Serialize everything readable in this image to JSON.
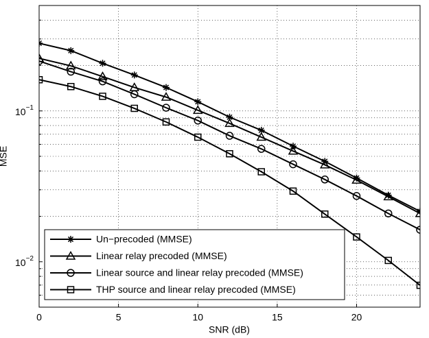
{
  "chart_data": {
    "type": "line",
    "xlabel": "SNR (dB)",
    "ylabel": "MSE",
    "yscale": "log",
    "grid": true,
    "legend": "southwest",
    "xlim": [
      0,
      24
    ],
    "xticks": [
      0,
      5,
      10,
      15,
      20
    ],
    "ylim": [
      0.005,
      0.5
    ],
    "yticks": [
      {
        "value": 0.01,
        "label": "10^−2"
      },
      {
        "value": 0.1,
        "label": "10^−1"
      }
    ],
    "yminorticks": [
      0.006,
      0.007,
      0.008,
      0.009,
      0.02,
      0.03,
      0.04,
      0.05,
      0.06,
      0.07,
      0.08,
      0.09,
      0.2,
      0.3,
      0.4,
      0.5
    ],
    "x": [
      0,
      2,
      4,
      6,
      8,
      10,
      12,
      14,
      16,
      18,
      20,
      22,
      24
    ],
    "series": [
      {
        "name": "Un−precoded (MMSE)",
        "color": "#000000",
        "marker": "star",
        "values": [
          0.281,
          0.251,
          0.207,
          0.173,
          0.143,
          0.115,
          0.0909,
          0.0744,
          0.0584,
          0.0463,
          0.0359,
          0.0276,
          0.0216
        ]
      },
      {
        "name": "Linear relay precoded (MMSE)",
        "color": "#000000",
        "marker": "triangle",
        "values": [
          0.223,
          0.199,
          0.169,
          0.143,
          0.1235,
          0.101,
          0.0827,
          0.067,
          0.0542,
          0.0439,
          0.0348,
          0.027,
          0.0209
        ]
      },
      {
        "name": "Linear source and linear relay precoded (MMSE)",
        "color": "#000000",
        "marker": "circle",
        "values": [
          0.214,
          0.182,
          0.157,
          0.129,
          0.105,
          0.0863,
          0.0684,
          0.056,
          0.0443,
          0.0351,
          0.0273,
          0.0209,
          0.0163
        ]
      },
      {
        "name": "THP source and linear relay precoded (MMSE)",
        "color": "#000000",
        "marker": "square",
        "values": [
          0.161,
          0.145,
          0.125,
          0.104,
          0.0845,
          0.067,
          0.052,
          0.0395,
          0.0294,
          0.0207,
          0.0146,
          0.0102,
          0.00698
        ]
      }
    ]
  }
}
